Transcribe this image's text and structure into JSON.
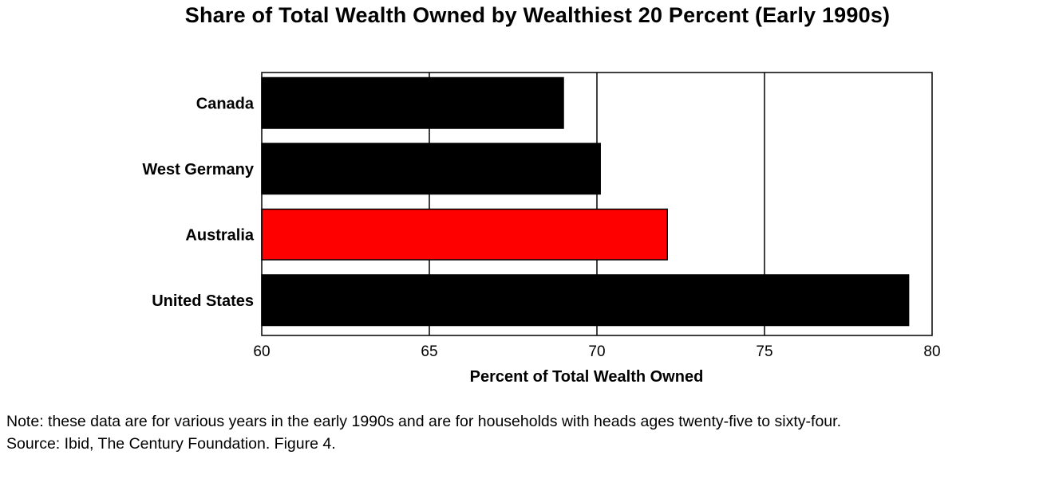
{
  "chart_data": {
    "type": "bar",
    "orientation": "horizontal",
    "title": "Share of Total Wealth Owned by Wealthiest 20 Percent (Early 1990s)",
    "xlabel": "Percent of Total Wealth Owned",
    "ylabel": "",
    "categories": [
      "Canada",
      "West Germany",
      "Australia",
      "United States"
    ],
    "values": [
      69.0,
      70.1,
      72.1,
      79.3
    ],
    "highlight_category": "Australia",
    "xlim": [
      60,
      80
    ],
    "xticks": [
      60,
      65,
      70,
      75,
      80
    ],
    "grid": true,
    "legend": "none",
    "colors": {
      "bar": "#000000",
      "highlight": "#ff0000",
      "grid": "#000000",
      "frame": "#000000"
    }
  },
  "notes": {
    "line1": "Note: these data are for various years in the early 1990s and are for households with heads ages twenty-five to sixty-four.",
    "line2": "Source: Ibid, The Century Foundation.  Figure 4."
  }
}
